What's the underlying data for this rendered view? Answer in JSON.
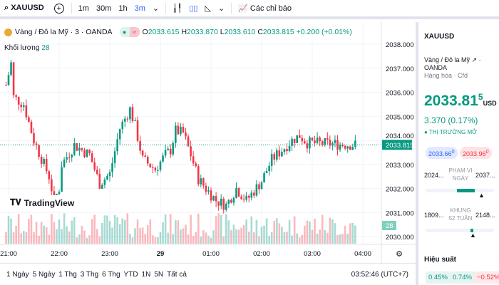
{
  "toolbar": {
    "symbol": "XAUUSD",
    "intervals": [
      "1m",
      "30m",
      "1h",
      "3m"
    ],
    "selected_interval": "3m",
    "indicators": "Các chỉ báo"
  },
  "legend": {
    "title": "Vàng / Đô la Mỹ · 3 · OANDA",
    "o": "2033.615",
    "h": "2033.870",
    "l": "2033.610",
    "c": "2033.815",
    "change": "+0.200 (+0.01%)",
    "volume_label": "Khối lượng",
    "volume_value": "28"
  },
  "price_axis": {
    "ticks": [
      "2038.000",
      "2037.000",
      "2036.000",
      "2035.000",
      "2034.000",
      "2033.000",
      "2032.000",
      "2031.000",
      "2030.000"
    ],
    "last_price": "2033.815",
    "volume_badge": "28"
  },
  "time_axis": {
    "ticks": [
      "21:00",
      "22:00",
      "23:00",
      "29",
      "01:00",
      "02:00",
      "03:00",
      "04:00"
    ]
  },
  "watermark": "TradingView",
  "ranges": [
    "1 Ngày",
    "5 Ngày",
    "1 Thg",
    "3 Thg",
    "6 Thg",
    "YTD",
    "1N",
    "5N",
    "Tất cả"
  ],
  "clock": "03:52:46 (UTC+7)",
  "colors": {
    "up": "#089981",
    "down": "#f23645",
    "accent": "#2962ff"
  },
  "chart_data": {
    "type": "candlestick",
    "interval": "3m",
    "ylim": [
      2030,
      2038
    ],
    "path": [
      [
        "20:57",
        2036.3
      ],
      [
        "21:03",
        2037.2
      ],
      [
        "21:06",
        2035.8
      ],
      [
        "21:18",
        2035.5
      ],
      [
        "21:30",
        2034
      ],
      [
        "21:48",
        2032.5
      ],
      [
        "21:54",
        2031.5
      ],
      [
        "22:00",
        2032
      ],
      [
        "22:03",
        2033
      ],
      [
        "22:18",
        2033.8
      ],
      [
        "22:36",
        2033.4
      ],
      [
        "22:48",
        2032.2
      ],
      [
        "23:00",
        2032.6
      ],
      [
        "23:12",
        2034.5
      ],
      [
        "23:24",
        2035.3
      ],
      [
        "23:30",
        2034.6
      ],
      [
        "23:39",
        2033.2
      ],
      [
        "23:54",
        2032.8
      ],
      [
        "00:06",
        2033.4
      ],
      [
        "00:12",
        2033.6
      ],
      [
        "00:18",
        2034.4
      ],
      [
        "00:27",
        2034.3
      ],
      [
        "00:36",
        2033.4
      ],
      [
        "00:45",
        2032.4
      ],
      [
        "00:54",
        2032.0
      ],
      [
        "01:06",
        2031.5
      ],
      [
        "01:18",
        2031.3
      ],
      [
        "01:30",
        2032
      ],
      [
        "01:42",
        2031.5
      ],
      [
        "02:00",
        2032.3
      ],
      [
        "02:12",
        2033.2
      ],
      [
        "02:36",
        2034.0
      ],
      [
        "02:45",
        2034.2
      ],
      [
        "02:54",
        2033.9
      ],
      [
        "03:51",
        2033.815
      ]
    ]
  },
  "sidebar": {
    "symbol": "XAUUSD",
    "name": "Vàng / Đô la Mỹ",
    "exchange": "OANDA",
    "type": "Hàng hóa · Cfd",
    "price": "2033.81",
    "price_sup": "5",
    "currency": "USD",
    "change": "3.370 (0.17%)",
    "status": "THỊ TRƯỜNG MỞ",
    "bid": "2033.66",
    "bid_sup": "0",
    "ask": "2033.96",
    "ask_sup": "0",
    "day_low": "2024...",
    "day_label": "PHẠM VI NGÀY",
    "day_high": "2037...",
    "day_pos": 0.9,
    "wk_low": "1809...",
    "wk_label": "KHUNG 52 TUẦN",
    "wk_high": "2148...",
    "wk_pos": 0.66,
    "perf_title": "Hiệu suất",
    "perf": [
      "0.45%",
      "0.74%",
      "−0.52%"
    ]
  }
}
